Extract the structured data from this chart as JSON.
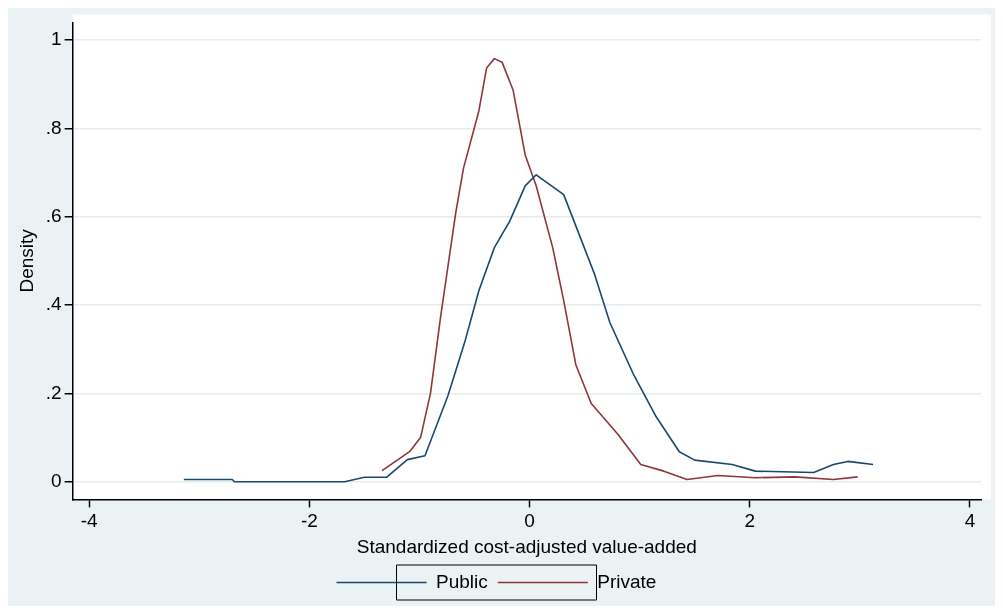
{
  "chart_data": {
    "type": "line",
    "xlabel": "Standardized cost-adjusted value-added",
    "ylabel": "Density",
    "xlim": [
      -4.15,
      4.1
    ],
    "xticks": [
      -4,
      -2,
      0,
      2,
      4
    ],
    "ylim": [
      -0.04,
      1.04
    ],
    "yticks": [
      {
        "value": 0,
        "label": "0"
      },
      {
        "value": 0.2,
        "label": ".2"
      },
      {
        "value": 0.4,
        "label": ".4"
      },
      {
        "value": 0.6,
        "label": ".6"
      },
      {
        "value": 0.8,
        "label": ".8"
      },
      {
        "value": 1,
        "label": "1"
      }
    ],
    "grid": "y",
    "legend": "bottom",
    "marker": "none",
    "line_style": "solid",
    "series": [
      {
        "name": "Public",
        "color": "#1a476f",
        "x": [
          -3.14,
          -2.7,
          -2.68,
          -1.68,
          -1.5,
          -1.3,
          -1.11,
          -0.95,
          -0.74,
          -0.59,
          -0.46,
          -0.32,
          -0.18,
          -0.04,
          0.06,
          0.31,
          0.45,
          0.59,
          0.73,
          0.94,
          1.15,
          1.36,
          1.5,
          1.84,
          2.05,
          2.58,
          2.76,
          2.89,
          3.12
        ],
        "values": [
          0.005,
          0.005,
          0.0,
          0.0,
          0.01,
          0.01,
          0.05,
          0.059,
          0.196,
          0.315,
          0.433,
          0.53,
          0.59,
          0.67,
          0.695,
          0.65,
          0.56,
          0.47,
          0.36,
          0.245,
          0.147,
          0.068,
          0.049,
          0.039,
          0.024,
          0.021,
          0.039,
          0.046,
          0.039
        ]
      },
      {
        "name": "Private",
        "color": "#90353b",
        "x": [
          -1.34,
          -1.09,
          -0.99,
          -0.9,
          -0.81,
          -0.67,
          -0.6,
          -0.46,
          -0.39,
          -0.32,
          -0.25,
          -0.15,
          -0.04,
          0.06,
          0.21,
          0.31,
          0.42,
          0.56,
          0.8,
          1.01,
          1.22,
          1.43,
          1.71,
          2.05,
          2.41,
          2.76,
          2.98
        ],
        "values": [
          0.025,
          0.068,
          0.1,
          0.2,
          0.37,
          0.61,
          0.71,
          0.84,
          0.937,
          0.958,
          0.95,
          0.887,
          0.74,
          0.67,
          0.53,
          0.41,
          0.265,
          0.177,
          0.108,
          0.039,
          0.024,
          0.005,
          0.014,
          0.009,
          0.011,
          0.005,
          0.011
        ]
      }
    ]
  }
}
